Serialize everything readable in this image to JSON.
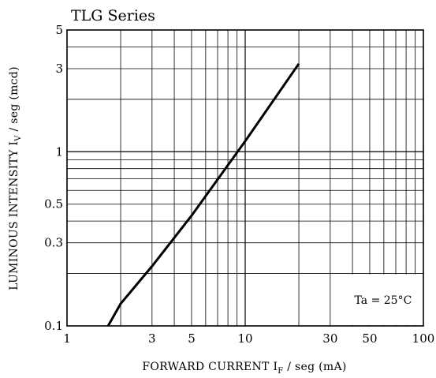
{
  "chart_data": {
    "type": "line",
    "title": "TLG Series",
    "xlabel": {
      "main": "FORWARD CURRENT  I",
      "sub": "F",
      "rest": " / seg   (mA)"
    },
    "ylabel": {
      "main": "LUMINOUS INTENSITY   I",
      "sub": "V",
      "rest": " / seg   (mcd)"
    },
    "x_scale": "log",
    "y_scale": "log",
    "xlim": [
      1,
      100
    ],
    "ylim": [
      0.1,
      5
    ],
    "x_ticks": [
      {
        "value": 1,
        "label": "1"
      },
      {
        "value": 3,
        "label": "3"
      },
      {
        "value": 5,
        "label": "5"
      },
      {
        "value": 10,
        "label": "10"
      },
      {
        "value": 30,
        "label": "30"
      },
      {
        "value": 50,
        "label": "50"
      },
      {
        "value": 100,
        "label": "100"
      }
    ],
    "y_ticks": [
      {
        "value": 0.1,
        "label": "0.1"
      },
      {
        "value": 0.3,
        "label": "0.3"
      },
      {
        "value": 0.5,
        "label": "0.5"
      },
      {
        "value": 1,
        "label": "1"
      },
      {
        "value": 3,
        "label": "3"
      },
      {
        "value": 5,
        "label": "5"
      }
    ],
    "grid": true,
    "annotation": "Ta = 25°C",
    "series": [
      {
        "x": [
          1.7,
          2.0,
          3.0,
          5.0,
          10.0,
          20.0
        ],
        "y": [
          0.1,
          0.134,
          0.22,
          0.43,
          1.15,
          3.2
        ]
      }
    ]
  }
}
